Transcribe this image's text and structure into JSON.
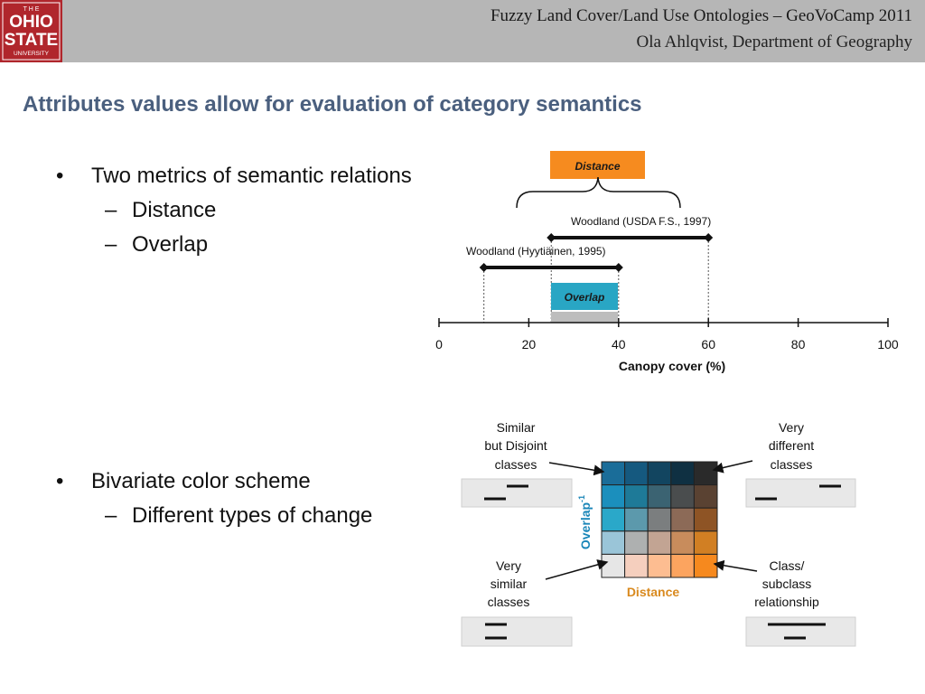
{
  "header": {
    "logo_text": [
      "T H E",
      "OHIO",
      "STATE",
      "UNIVERSITY"
    ],
    "title": "Fuzzy Land Cover/Land Use Ontologies – GeoVoCamp 2011",
    "subtitle": "Ola Ahlqvist, Department of Geography"
  },
  "slide": {
    "title": "Attributes values allow for evaluation of category semantics"
  },
  "bullets": {
    "b1": "Two metrics of semantic relations",
    "b1_sub1": "Distance",
    "b1_sub2": "Overlap",
    "b2": "Bivariate color scheme",
    "b2_sub1": "Different types of change",
    "marker": "•",
    "dash": "–"
  },
  "figure_top": {
    "distance_label": "Distance",
    "overlap_label": "Overlap",
    "woodland_usda": "Woodland (USDA F.S., 1997)",
    "woodland_hyy": "Woodland (Hyytiäinen, 1995)",
    "usda_range": [
      25,
      60
    ],
    "hyy_range": [
      10,
      40
    ],
    "overlap_range": [
      25,
      40
    ],
    "axis_ticks": [
      "0",
      "20",
      "40",
      "60",
      "80",
      "100"
    ],
    "axis_label": "Canopy cover (%)",
    "colors": {
      "distance": "#f68b1f",
      "overlap": "#29a6c4"
    }
  },
  "figure_bottom": {
    "similar_disjoint": [
      "Similar",
      "but Disjoint",
      "classes"
    ],
    "very_different": [
      "Very",
      "different",
      "classes"
    ],
    "very_similar": [
      "Very",
      "similar",
      "classes"
    ],
    "class_subclass": [
      "Class/",
      "subclass",
      "relationship"
    ],
    "overlap_axis": "Overlap",
    "overlap_sup": "-1",
    "distance_axis": "Distance",
    "grid_colors": [
      [
        "#1a6d99",
        "#15597f",
        "#124560",
        "#0f3042",
        "#2a2a2a"
      ],
      [
        "#1b8fbd",
        "#1e7a98",
        "#3b6372",
        "#4a4d4e",
        "#5a4232"
      ],
      [
        "#2aa8c9",
        "#5c99ac",
        "#7b7e7f",
        "#8c6a57",
        "#8e5425"
      ],
      [
        "#9ac5d8",
        "#aeb0b0",
        "#c2a493",
        "#c88c5c",
        "#d17f23"
      ],
      [
        "#e6e6e6",
        "#f5cfbe",
        "#fdbd91",
        "#fca45f",
        "#f6891e"
      ]
    ]
  }
}
